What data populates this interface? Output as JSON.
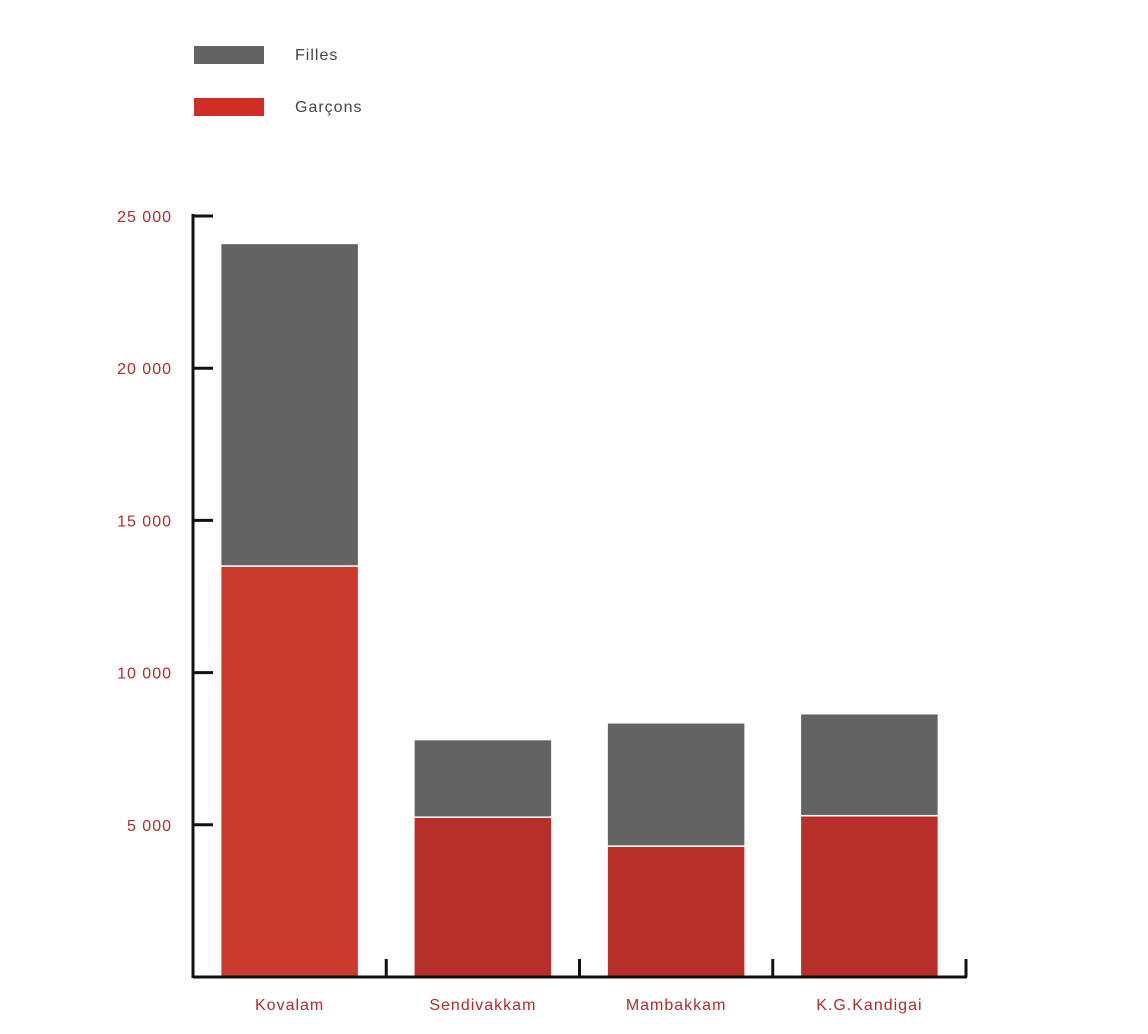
{
  "chart_data": {
    "type": "bar",
    "stacked": true,
    "categories": [
      "Kovalam",
      "Sendivakkam",
      "Mambakkam",
      "K.G.Kandigai"
    ],
    "series": [
      {
        "name": "Garçons",
        "values": [
          13500,
          5250,
          4300,
          5300
        ]
      },
      {
        "name": "Filles",
        "values": [
          10600,
          2550,
          4050,
          3350
        ]
      }
    ],
    "yticks": [
      5000,
      10000,
      15000,
      20000,
      25000
    ],
    "ytick_labels": [
      "5 000",
      "10 000",
      "15 000",
      "20 000",
      "25 000"
    ],
    "ylim": [
      0,
      25000
    ],
    "legend": {
      "position": "top-left",
      "items": [
        {
          "label": "Filles",
          "color": "#636363"
        },
        {
          "label": "Garçons",
          "color": "#cf2d26"
        }
      ]
    },
    "colors": {
      "filles": "#636363",
      "garcons_first": "#cc3a2d",
      "garcons": "#b82e28",
      "axis": "#111111",
      "label": "#b32a2a"
    },
    "grid": false
  }
}
